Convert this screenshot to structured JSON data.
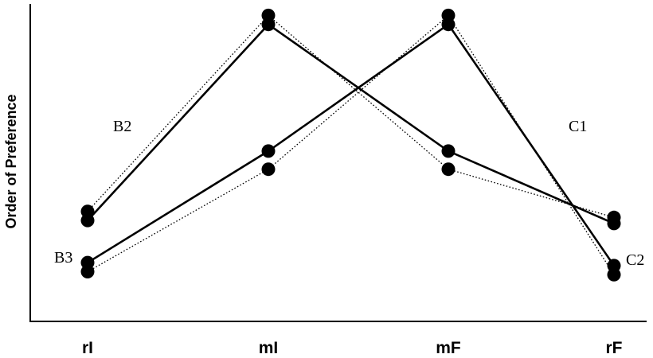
{
  "chart_data": {
    "type": "line",
    "ylabel": "Order of Preference",
    "xlabel": "",
    "categories": [
      "rI",
      "mI",
      "mF",
      "rF"
    ],
    "grid": false,
    "legend": "none",
    "series": [
      {
        "name": "B2",
        "style": "dotted",
        "values": [
          3.2,
          9.7,
          4.6,
          3.0
        ],
        "label_at": "mI-side upper"
      },
      {
        "name": "B3",
        "style": "dotted",
        "values": [
          1.2,
          4.6,
          9.7,
          1.1
        ],
        "label_at": "rI lower"
      },
      {
        "name": "C1",
        "style": "solid",
        "values": [
          2.9,
          9.4,
          5.2,
          2.8
        ],
        "label_at": "rF upper"
      },
      {
        "name": "C2",
        "style": "solid",
        "values": [
          1.5,
          5.2,
          9.4,
          1.4
        ],
        "label_at": "rF lower"
      }
    ],
    "series_labels": [
      "B2",
      "B3",
      "C1",
      "C2"
    ],
    "ylim": [
      0,
      10
    ]
  }
}
